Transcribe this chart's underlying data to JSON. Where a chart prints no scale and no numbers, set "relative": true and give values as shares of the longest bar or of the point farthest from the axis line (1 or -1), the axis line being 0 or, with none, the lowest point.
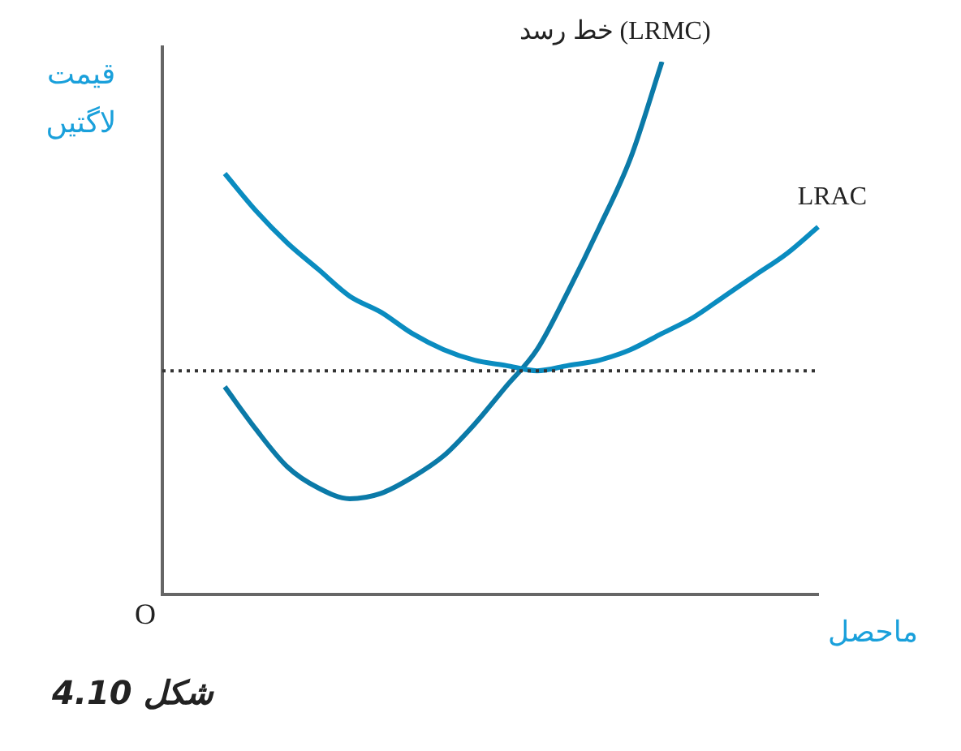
{
  "chart_data": {
    "type": "line",
    "relative": true,
    "ylabel": "قیمت لاگتیں",
    "xlabel": "ماحصل",
    "legend": false,
    "grid": false,
    "marker": "none",
    "categories": [
      null,
      null,
      null,
      null,
      null,
      null,
      null,
      null,
      null,
      null,
      null,
      null,
      null,
      null,
      null,
      null,
      null,
      null,
      null,
      null,
      null,
      null
    ],
    "series": [
      {
        "name": "LRAC",
        "color": "#0a8cc0",
        "values": [
          null,
          null,
          0.79,
          0.72,
          0.66,
          0.61,
          0.56,
          0.53,
          0.49,
          0.46,
          0.44,
          0.43,
          0.42,
          0.43,
          0.44,
          0.46,
          0.49,
          0.52,
          0.56,
          0.6,
          0.64,
          0.69
        ]
      },
      {
        "name": "خط رسد (LRMC)",
        "color": "#0b7aa8",
        "values": [
          null,
          null,
          0.39,
          0.31,
          0.24,
          0.2,
          0.18,
          0.19,
          0.22,
          0.26,
          0.32,
          0.39,
          0.46,
          0.57,
          0.69,
          0.82,
          1,
          null,
          null,
          null,
          null,
          null
        ]
      }
    ],
    "ref_lines": [
      {
        "axis": "y",
        "value": 0.42,
        "line_style": "dotted",
        "color": "#333333"
      }
    ],
    "annotations": [
      "O",
      "شکل 4.10"
    ]
  }
}
